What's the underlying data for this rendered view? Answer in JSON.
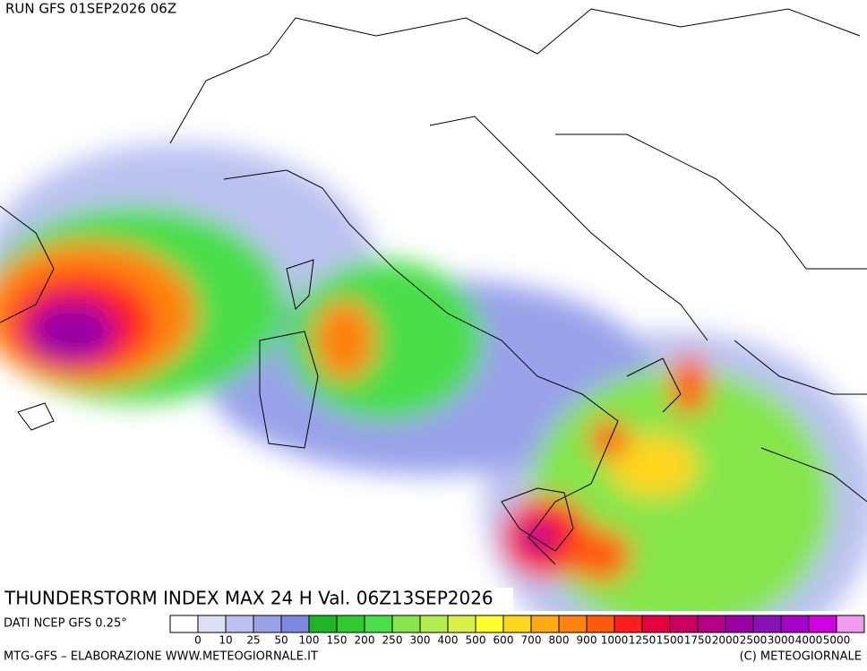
{
  "header": {
    "run": "RUN GFS 01SEP2026 06Z"
  },
  "map": {
    "title": "THUNDERSTORM INDEX MAX 24 H Val. 06Z13SEP2026",
    "source": "DATI NCEP GFS 0.25°"
  },
  "legend": {
    "labels": [
      0,
      10,
      25,
      50,
      100,
      150,
      200,
      250,
      300,
      400,
      500,
      600,
      700,
      800,
      900,
      1000,
      1250,
      1500,
      1750,
      2000,
      2500,
      3000,
      4000,
      5000
    ],
    "colors": [
      "#ffffff",
      "#dde0f6",
      "#bcc2f0",
      "#9aa3ea",
      "#7f88e0",
      "#1fb526",
      "#2fcb30",
      "#4ade4a",
      "#86e64c",
      "#b2ee4e",
      "#d8f24a",
      "#ffff2a",
      "#ffd61e",
      "#ffaa14",
      "#ff820e",
      "#ff5a0a",
      "#ff1e1e",
      "#e6003c",
      "#cc0060",
      "#b40084",
      "#9a00a4",
      "#8a10b8",
      "#a800cc",
      "#d000e0",
      "#f09af0"
    ]
  },
  "footer": {
    "left": "MTG-GFS – ELABORAZIONE WWW.METEOGIORNALE.IT",
    "right": "(C) METEOGIORNALE"
  }
}
